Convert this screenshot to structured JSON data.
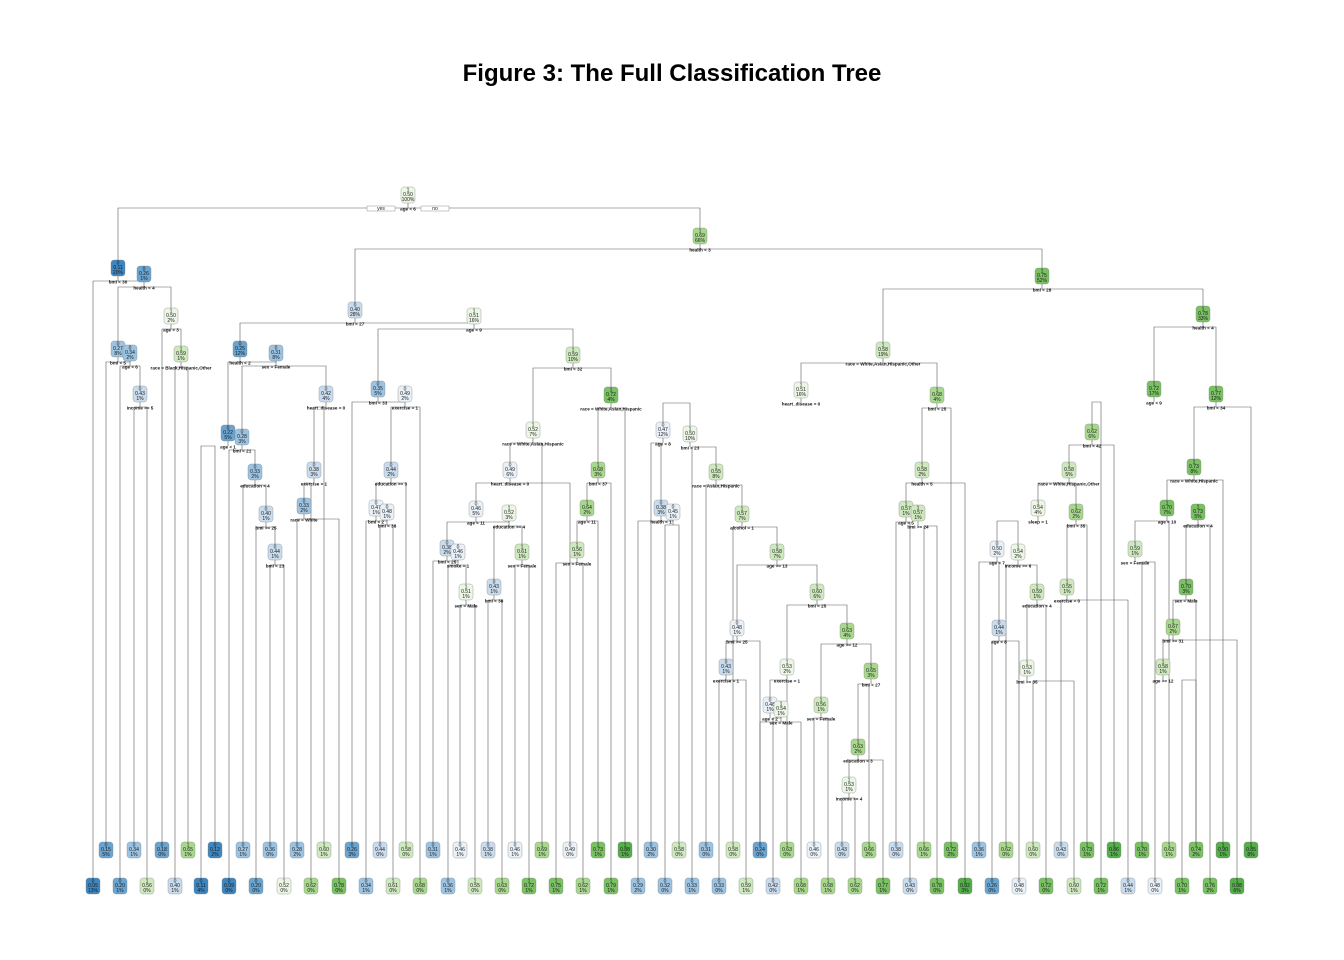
{
  "title": "Figure 3: The Full Classification Tree",
  "root_labels": {
    "yes": "yes",
    "no": "no"
  },
  "colors": {
    "class0": [
      "#3f86bf",
      "#6aa4d0",
      "#9cc3e2",
      "#c9dcee",
      "#e8f0f8"
    ],
    "class1": [
      "#ecf6e5",
      "#cfe9bf",
      "#a8d88e",
      "#79c163",
      "#55ad4c"
    ],
    "node_border": "#7f7f7f",
    "edge": "#5a5a5a"
  },
  "tree": {
    "nodes": [
      {
        "id": "n1",
        "cls": "1",
        "p": "0.50",
        "pct": "100%",
        "split": "age < 6"
      },
      {
        "id": "n2",
        "cls": "0",
        "p": "0.11",
        "pct": "20%",
        "split": "bmi < 30"
      },
      {
        "id": "n3",
        "cls": "0",
        "p": "0.26",
        "pct": "1%",
        "split": "health < 4"
      },
      {
        "id": "n4",
        "cls": "0",
        "p": "0.27",
        "pct": "8%",
        "split": "bmi < 5"
      },
      {
        "id": "n5",
        "cls": "0",
        "p": "0.34",
        "pct": "2%",
        "split": "age < 6"
      },
      {
        "id": "n6",
        "cls": "0",
        "p": "0.43",
        "pct": "1%",
        "split": "income >= 5"
      },
      {
        "id": "n7",
        "cls": "1",
        "p": "0.50",
        "pct": "2%",
        "split": "age < 3"
      },
      {
        "id": "n8",
        "cls": "1",
        "p": "0.59",
        "pct": "1%",
        "split": "race = Black,Hispanic,Other"
      },
      {
        "id": "n9",
        "cls": "1",
        "p": "0.69",
        "pct": "66%",
        "split": "health < 3"
      },
      {
        "id": "n10",
        "cls": "0",
        "p": "0.40",
        "pct": "28%",
        "split": "bmi < 27"
      },
      {
        "id": "n11",
        "cls": "1",
        "p": "0.51",
        "pct": "16%",
        "split": "age < 9"
      },
      {
        "id": "n12",
        "cls": "0",
        "p": "0.25",
        "pct": "12%",
        "split": "health < 2"
      },
      {
        "id": "n13",
        "cls": "0",
        "p": "0.31",
        "pct": "8%",
        "split": "sex = Female"
      },
      {
        "id": "n14",
        "cls": "0",
        "p": "0.22",
        "pct": "5%",
        "split": "age < 1"
      },
      {
        "id": "n15",
        "cls": "0",
        "p": "0.28",
        "pct": "3%",
        "split": "bmi < 21"
      },
      {
        "id": "n16",
        "cls": "0",
        "p": "0.33",
        "pct": "2%",
        "split": "education < 4"
      },
      {
        "id": "n17",
        "cls": "0",
        "p": "0.40",
        "pct": "1%",
        "split": "bmi >= 25"
      },
      {
        "id": "n18",
        "cls": "0",
        "p": "0.44",
        "pct": "1%",
        "split": "bmi < 23"
      },
      {
        "id": "n19",
        "cls": "0",
        "p": "0.42",
        "pct": "4%",
        "split": "heart_disease = 0"
      },
      {
        "id": "n20",
        "cls": "0",
        "p": "0.38",
        "pct": "3%",
        "split": "exercise = 1"
      },
      {
        "id": "n21",
        "cls": "0",
        "p": "0.33",
        "pct": "2%",
        "split": "race = White"
      },
      {
        "id": "n22",
        "cls": "0",
        "p": "0.35",
        "pct": "5%",
        "split": "bmi < 33"
      },
      {
        "id": "n23",
        "cls": "0",
        "p": "0.49",
        "pct": "2%",
        "split": "exercise = 1"
      },
      {
        "id": "n24",
        "cls": "0",
        "p": "0.44",
        "pct": "2%",
        "split": "education >= 3"
      },
      {
        "id": "n25",
        "cls": "0",
        "p": "0.47",
        "pct": "1%",
        "split": "bmi < 2"
      },
      {
        "id": "n26",
        "cls": "0",
        "p": "0.48",
        "pct": "1%",
        "split": "bmi < 38"
      },
      {
        "id": "n27",
        "cls": "1",
        "p": "0.59",
        "pct": "10%",
        "split": "bmi < 32"
      },
      {
        "id": "n28",
        "cls": "1",
        "p": "0.52",
        "pct": "7%",
        "split": "race = White,Asian,Hispanic"
      },
      {
        "id": "n29",
        "cls": "0",
        "p": "0.49",
        "pct": "6%",
        "split": "heart_disease = 0"
      },
      {
        "id": "n30",
        "cls": "0",
        "p": "0.46",
        "pct": "5%",
        "split": "age < 11"
      },
      {
        "id": "n31",
        "cls": "0",
        "p": "0.38",
        "pct": "2%",
        "split": "bmi < 25"
      },
      {
        "id": "n32",
        "cls": "0",
        "p": "0.46",
        "pct": "1%",
        "split": "smoke = 1"
      },
      {
        "id": "n33",
        "cls": "1",
        "p": "0.51",
        "pct": "1%",
        "split": "sex = Male"
      },
      {
        "id": "n34",
        "cls": "1",
        "p": "0.52",
        "pct": "3%",
        "split": "education >= 4"
      },
      {
        "id": "n35",
        "cls": "0",
        "p": "0.43",
        "pct": "1%",
        "split": "bmi < 38"
      },
      {
        "id": "n36",
        "cls": "1",
        "p": "0.61",
        "pct": "1%",
        "split": "sex = Female"
      },
      {
        "id": "n37",
        "cls": "1",
        "p": "0.72",
        "pct": "4%",
        "split": "race = White,Asian,Hispanic"
      },
      {
        "id": "n38",
        "cls": "1",
        "p": "0.68",
        "pct": "3%",
        "split": "bmi < 37"
      },
      {
        "id": "n39",
        "cls": "1",
        "p": "0.64",
        "pct": "2%",
        "split": "age < 11"
      },
      {
        "id": "n40",
        "cls": "1",
        "p": "0.56",
        "pct": "1%",
        "split": "sex = Female"
      },
      {
        "id": "n41",
        "cls": "1",
        "p": "0.75",
        "pct": "52%",
        "split": "bmi < 28"
      },
      {
        "id": "n42",
        "cls": "1",
        "p": "0.58",
        "pct": "19%",
        "split": "race = White,Asian,Hispanic,Other"
      },
      {
        "id": "n43",
        "cls": "1",
        "p": "0.51",
        "pct": "16%",
        "split": "heart_disease = 0"
      },
      {
        "id": "n44",
        "cls": "0",
        "p": "0.47",
        "pct": "12%",
        "split": "age < 8"
      },
      {
        "id": "n45",
        "cls": "0",
        "p": "0.38",
        "pct": "3%",
        "split": "health < 1"
      },
      {
        "id": "n46",
        "cls": "0",
        "p": "0.45",
        "pct": "1%",
        "split": ""
      },
      {
        "id": "n47",
        "cls": "1",
        "p": "0.50",
        "pct": "10%",
        "split": "bmi < 23"
      },
      {
        "id": "n48",
        "cls": "1",
        "p": "0.55",
        "pct": "8%",
        "split": "race = Asian,Hispanic"
      },
      {
        "id": "n49",
        "cls": "1",
        "p": "0.57",
        "pct": "7%",
        "split": "alcohol = 1"
      },
      {
        "id": "n50",
        "cls": "1",
        "p": "0.58",
        "pct": "7%",
        "split": "age >= 13"
      },
      {
        "id": "n51",
        "cls": "0",
        "p": "0.48",
        "pct": "1%",
        "split": "bmi >= 25"
      },
      {
        "id": "n52",
        "cls": "0",
        "p": "0.43",
        "pct": "1%",
        "split": "exercise = 1"
      },
      {
        "id": "n53",
        "cls": "1",
        "p": "0.60",
        "pct": "6%",
        "split": "bmi < 25"
      },
      {
        "id": "n54",
        "cls": "1",
        "p": "0.53",
        "pct": "2%",
        "split": "exercise = 1"
      },
      {
        "id": "n55",
        "cls": "0",
        "p": "0.48",
        "pct": "1%",
        "split": "age < 2"
      },
      {
        "id": "n56",
        "cls": "1",
        "p": "0.54",
        "pct": "1%",
        "split": "sex = Male"
      },
      {
        "id": "n57",
        "cls": "1",
        "p": "0.56",
        "pct": "1%",
        "split": "sex = Female"
      },
      {
        "id": "n58",
        "cls": "1",
        "p": "0.63",
        "pct": "4%",
        "split": "age >= 12"
      },
      {
        "id": "n59",
        "cls": "1",
        "p": "0.65",
        "pct": "3%",
        "split": "bmi < 27"
      },
      {
        "id": "n60",
        "cls": "1",
        "p": "0.63",
        "pct": "2%",
        "split": "education < 3"
      },
      {
        "id": "n61",
        "cls": "1",
        "p": "0.53",
        "pct": "1%",
        "split": "income >= 4"
      },
      {
        "id": "n62",
        "cls": "1",
        "p": "0.68",
        "pct": "4%",
        "split": "bmi < 25"
      },
      {
        "id": "n63",
        "cls": "1",
        "p": "0.58",
        "pct": "2%",
        "split": "health < 5"
      },
      {
        "id": "n64",
        "cls": "1",
        "p": "0.57",
        "pct": "1%",
        "split": "age < 5"
      },
      {
        "id": "n65",
        "cls": "1",
        "p": "0.57",
        "pct": "1%",
        "split": "bmi >= 24"
      },
      {
        "id": "n66",
        "cls": "1",
        "p": "0.78",
        "pct": "33%",
        "split": "health < 4"
      },
      {
        "id": "n67",
        "cls": "1",
        "p": "0.72",
        "pct": "17%",
        "split": "age < 9"
      },
      {
        "id": "n68",
        "cls": "1",
        "p": "0.62",
        "pct": "6%",
        "split": "bmi < 42"
      },
      {
        "id": "n69",
        "cls": "1",
        "p": "0.58",
        "pct": "5%",
        "split": "race = White,Hispanic,Other"
      },
      {
        "id": "n70",
        "cls": "1",
        "p": "0.54",
        "pct": "4%",
        "split": "sleep = 1"
      },
      {
        "id": "n71",
        "cls": "0",
        "p": "0.50",
        "pct": "2%",
        "split": "age < 7"
      },
      {
        "id": "n72",
        "cls": "0",
        "p": "0.44",
        "pct": "1%",
        "split": "age < 8"
      },
      {
        "id": "n73",
        "cls": "1",
        "p": "0.54",
        "pct": "2%",
        "split": "income >= 6"
      },
      {
        "id": "n74",
        "cls": "1",
        "p": "0.59",
        "pct": "1%",
        "split": "education < 4"
      },
      {
        "id": "n75",
        "cls": "1",
        "p": "0.53",
        "pct": "1%",
        "split": "bmi >= 35"
      },
      {
        "id": "n76",
        "cls": "1",
        "p": "0.62",
        "pct": "2%",
        "split": "bmi < 35"
      },
      {
        "id": "n77",
        "cls": "1",
        "p": "0.55",
        "pct": "1%",
        "split": "exercise = 0"
      },
      {
        "id": "n78",
        "cls": "1",
        "p": "0.77",
        "pct": "12%",
        "split": "bmi < 34"
      },
      {
        "id": "n79",
        "cls": "1",
        "p": "0.73",
        "pct": "8%",
        "split": "race = White,Hispanic"
      },
      {
        "id": "n80",
        "cls": "1",
        "p": "0.70",
        "pct": "7%",
        "split": "age < 10"
      },
      {
        "id": "n81",
        "cls": "1",
        "p": "0.59",
        "pct": "1%",
        "split": "sex = Female"
      },
      {
        "id": "n82",
        "cls": "1",
        "p": "0.73",
        "pct": "5%",
        "split": "education < 4"
      },
      {
        "id": "n83",
        "cls": "1",
        "p": "0.70",
        "pct": "3%",
        "split": "sex = Male"
      },
      {
        "id": "n84",
        "cls": "1",
        "p": "0.67",
        "pct": "2%",
        "split": "bmi >= 31"
      },
      {
        "id": "n85",
        "cls": "1",
        "p": "0.58",
        "pct": "1%",
        "split": "age >= 12"
      }
    ],
    "leaves_upper": [
      {
        "cls": "0",
        "p": "0.15",
        "pct": "5%"
      },
      {
        "cls": "0",
        "p": "0.34",
        "pct": "1%"
      },
      {
        "cls": "0",
        "p": "0.18",
        "pct": "0%"
      },
      {
        "cls": "1",
        "p": "0.65",
        "pct": "1%"
      },
      {
        "cls": "0",
        "p": "0.12",
        "pct": "2%"
      },
      {
        "cls": "0",
        "p": "0.27",
        "pct": "1%"
      },
      {
        "cls": "0",
        "p": "0.36",
        "pct": "0%"
      },
      {
        "cls": "0",
        "p": "0.28",
        "pct": "2%"
      },
      {
        "cls": "1",
        "p": "0.60",
        "pct": "1%"
      },
      {
        "cls": "0",
        "p": "0.26",
        "pct": "3%"
      },
      {
        "cls": "0",
        "p": "0.44",
        "pct": "0%"
      },
      {
        "cls": "1",
        "p": "0.58",
        "pct": "0%"
      },
      {
        "cls": "0",
        "p": "0.31",
        "pct": "1%"
      },
      {
        "cls": "0",
        "p": "0.46",
        "pct": "1%"
      },
      {
        "cls": "0",
        "p": "0.38",
        "pct": "1%"
      },
      {
        "cls": "0",
        "p": "0.46",
        "pct": "1%"
      },
      {
        "cls": "1",
        "p": "0.69",
        "pct": "1%"
      },
      {
        "cls": "0",
        "p": "0.49",
        "pct": "0%"
      },
      {
        "cls": "1",
        "p": "0.73",
        "pct": "1%"
      },
      {
        "cls": "1",
        "p": "0.88",
        "pct": "1%"
      },
      {
        "cls": "0",
        "p": "0.30",
        "pct": "2%"
      },
      {
        "cls": "1",
        "p": "0.58",
        "pct": "0%"
      },
      {
        "cls": "0",
        "p": "0.31",
        "pct": "0%"
      },
      {
        "cls": "1",
        "p": "0.58",
        "pct": "0%"
      },
      {
        "cls": "0",
        "p": "0.24",
        "pct": "0%"
      },
      {
        "cls": "1",
        "p": "0.63",
        "pct": "0%"
      },
      {
        "cls": "0",
        "p": "0.46",
        "pct": "0%"
      },
      {
        "cls": "0",
        "p": "0.43",
        "pct": "0%"
      },
      {
        "cls": "1",
        "p": "0.66",
        "pct": "2%"
      },
      {
        "cls": "0",
        "p": "0.38",
        "pct": "0%"
      },
      {
        "cls": "1",
        "p": "0.66",
        "pct": "1%"
      },
      {
        "cls": "1",
        "p": "0.72",
        "pct": "2%"
      },
      {
        "cls": "0",
        "p": "0.36",
        "pct": "1%"
      },
      {
        "cls": "1",
        "p": "0.62",
        "pct": "0%"
      },
      {
        "cls": "1",
        "p": "0.60",
        "pct": "0%"
      },
      {
        "cls": "0",
        "p": "0.43",
        "pct": "0%"
      },
      {
        "cls": "1",
        "p": "0.73",
        "pct": "1%"
      },
      {
        "cls": "1",
        "p": "0.86",
        "pct": "1%"
      },
      {
        "cls": "1",
        "p": "0.70",
        "pct": "1%"
      },
      {
        "cls": "1",
        "p": "0.63",
        "pct": "1%"
      },
      {
        "cls": "1",
        "p": "0.74",
        "pct": "2%"
      },
      {
        "cls": "1",
        "p": "0.90",
        "pct": "1%"
      },
      {
        "cls": "1",
        "p": "0.85",
        "pct": "8%"
      }
    ],
    "leaves_lower": [
      {
        "cls": "0",
        "p": "0.05",
        "pct": "13%"
      },
      {
        "cls": "0",
        "p": "0.20",
        "pct": "1%"
      },
      {
        "cls": "1",
        "p": "0.56",
        "pct": "0%"
      },
      {
        "cls": "0",
        "p": "0.40",
        "pct": "1%"
      },
      {
        "cls": "0",
        "p": "0.11",
        "pct": "4%"
      },
      {
        "cls": "0",
        "p": "0.09",
        "pct": "0%"
      },
      {
        "cls": "0",
        "p": "0.20",
        "pct": "0%"
      },
      {
        "cls": "1",
        "p": "0.52",
        "pct": "0%"
      },
      {
        "cls": "1",
        "p": "0.62",
        "pct": "0%"
      },
      {
        "cls": "1",
        "p": "0.78",
        "pct": "0%"
      },
      {
        "cls": "0",
        "p": "0.34",
        "pct": "1%"
      },
      {
        "cls": "1",
        "p": "0.61",
        "pct": "0%"
      },
      {
        "cls": "1",
        "p": "0.68",
        "pct": "0%"
      },
      {
        "cls": "0",
        "p": "0.36",
        "pct": "1%"
      },
      {
        "cls": "1",
        "p": "0.55",
        "pct": "0%"
      },
      {
        "cls": "1",
        "p": "0.63",
        "pct": "0%"
      },
      {
        "cls": "1",
        "p": "0.72",
        "pct": "1%"
      },
      {
        "cls": "1",
        "p": "0.75",
        "pct": "1%"
      },
      {
        "cls": "1",
        "p": "0.62",
        "pct": "1%"
      },
      {
        "cls": "1",
        "p": "0.79",
        "pct": "1%"
      },
      {
        "cls": "0",
        "p": "0.29",
        "pct": "2%"
      },
      {
        "cls": "0",
        "p": "0.32",
        "pct": "0%"
      },
      {
        "cls": "0",
        "p": "0.33",
        "pct": "1%"
      },
      {
        "cls": "0",
        "p": "0.33",
        "pct": "0%"
      },
      {
        "cls": "1",
        "p": "0.59",
        "pct": "1%"
      },
      {
        "cls": "0",
        "p": "0.42",
        "pct": "0%"
      },
      {
        "cls": "1",
        "p": "0.68",
        "pct": "1%"
      },
      {
        "cls": "1",
        "p": "0.68",
        "pct": "1%"
      },
      {
        "cls": "1",
        "p": "0.62",
        "pct": "0%"
      },
      {
        "cls": "1",
        "p": "0.77",
        "pct": "1%"
      },
      {
        "cls": "0",
        "p": "0.43",
        "pct": "0%"
      },
      {
        "cls": "1",
        "p": "0.78",
        "pct": "0%"
      },
      {
        "cls": "1",
        "p": "0.82",
        "pct": "3%"
      },
      {
        "cls": "0",
        "p": "0.26",
        "pct": "0%"
      },
      {
        "cls": "0",
        "p": "0.48",
        "pct": "0%"
      },
      {
        "cls": "1",
        "p": "0.72",
        "pct": "0%"
      },
      {
        "cls": "1",
        "p": "0.60",
        "pct": "1%"
      },
      {
        "cls": "1",
        "p": "0.72",
        "pct": "1%"
      },
      {
        "cls": "0",
        "p": "0.44",
        "pct": "1%"
      },
      {
        "cls": "0",
        "p": "0.48",
        "pct": "0%"
      },
      {
        "cls": "1",
        "p": "0.70",
        "pct": "1%"
      },
      {
        "cls": "1",
        "p": "0.76",
        "pct": "2%"
      },
      {
        "cls": "1",
        "p": "0.88",
        "pct": "6%"
      }
    ]
  }
}
